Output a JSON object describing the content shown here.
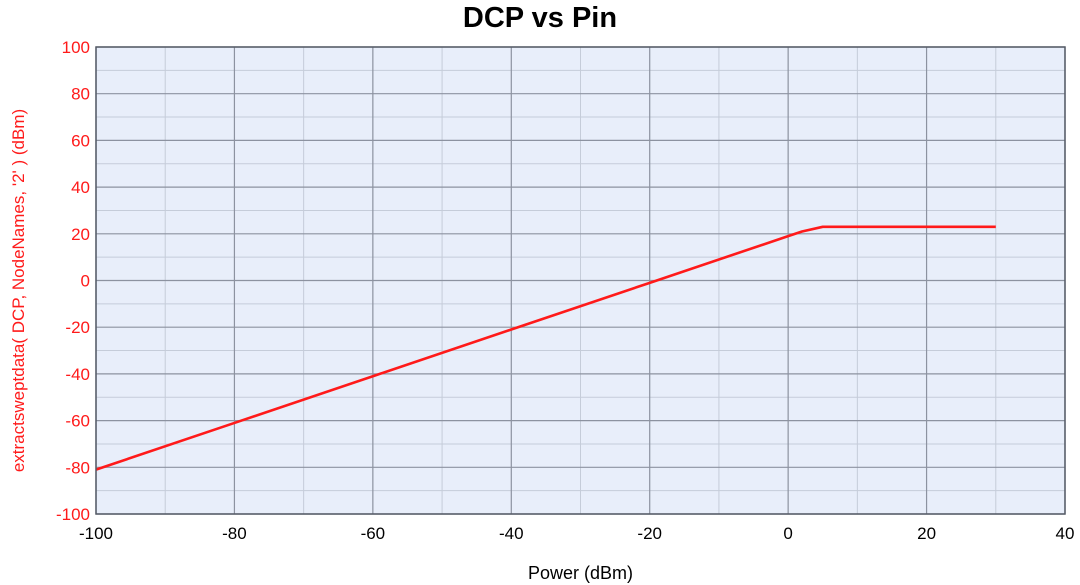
{
  "chart_data": {
    "type": "line",
    "title": "DCP vs Pin",
    "xlabel": "Power (dBm)",
    "ylabel": "extractsweptdata( DCP, NodeNames, '2' ) (dBm)",
    "xlim": [
      -100,
      40
    ],
    "ylim": [
      -100,
      100
    ],
    "x_ticks": [
      -100,
      -80,
      -60,
      -40,
      -20,
      0,
      20,
      40
    ],
    "y_ticks": [
      100,
      80,
      60,
      40,
      20,
      0,
      -20,
      -40,
      -60,
      -80,
      -100
    ],
    "x_minor_step": 10,
    "y_minor_step": 10,
    "grid": true,
    "series": [
      {
        "x": [
          -100,
          -80,
          -60,
          -40,
          -20,
          0,
          2,
          5,
          10,
          20,
          30
        ],
        "y": [
          -81,
          -61,
          -41,
          -21,
          -1,
          19,
          21,
          23,
          23,
          23,
          23
        ]
      }
    ],
    "colors": {
      "plot_background": "#e8eefa",
      "major_grid": "#8c92a0",
      "minor_grid": "#c5ccd9",
      "frame": "#555b66",
      "series_line": "#ff1a1a",
      "y_axis_text": "#ff1a1a",
      "x_axis_text": "#000000"
    }
  }
}
